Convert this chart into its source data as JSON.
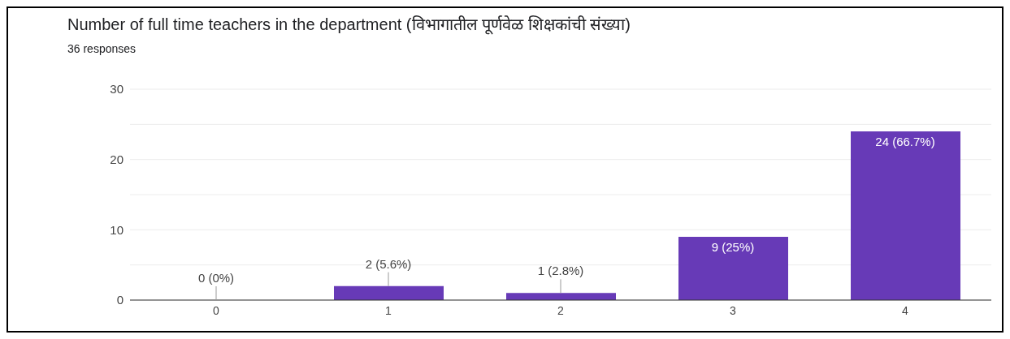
{
  "chart_data": {
    "type": "bar",
    "title": "Number of full time teachers in the department (विभागातील पूर्णवेळ शिक्षकांची संख्या)",
    "subtitle": "36 responses",
    "categories": [
      "0",
      "1",
      "2",
      "3",
      "4"
    ],
    "values": [
      0,
      2,
      1,
      9,
      24
    ],
    "value_labels": [
      "0 (0%)",
      "2 (5.6%)",
      "1 (2.8%)",
      "9 (25%)",
      "24 (66.7%)"
    ],
    "color": "#673ab7",
    "ylim": [
      0,
      30
    ],
    "yticks": [
      0,
      {
        "value": 5,
        "label": null
      },
      10,
      {
        "value": 15,
        "label": null
      },
      20,
      {
        "value": 25,
        "label": null
      },
      30
    ],
    "grid": "y"
  }
}
